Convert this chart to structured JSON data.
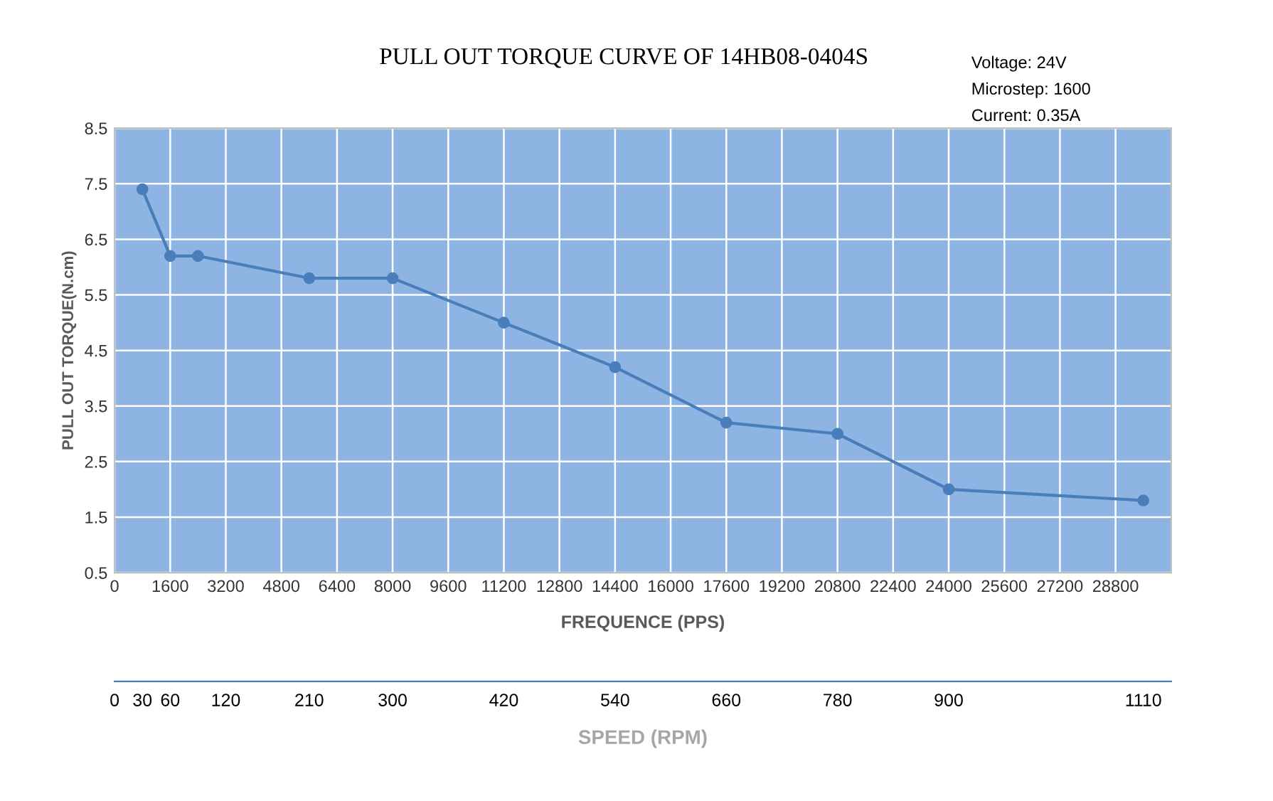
{
  "chart_data": {
    "type": "line",
    "title": "PULL OUT TORQUE CURVE OF 14HB08-0404S",
    "xlabel": "FREQUENCE (PPS)",
    "ylabel": "PULL OUT TORQUE(N.cm)",
    "x2label": "SPEED (RPM)",
    "annotations": [
      "Voltage: 24V",
      "Microstep: 1600",
      "Current: 0.35A"
    ],
    "x": [
      800,
      1600,
      2400,
      5600,
      8000,
      11200,
      14400,
      17600,
      20800,
      24000,
      29600
    ],
    "series": [
      {
        "color": "#4a7ebb",
        "values": [
          7.4,
          6.2,
          6.2,
          5.8,
          5.8,
          5.0,
          4.2,
          3.2,
          3.0,
          2.0,
          1.8
        ]
      }
    ],
    "xlim": [
      0,
      30400
    ],
    "xticks": [
      0,
      1600,
      3200,
      4800,
      6400,
      8000,
      9600,
      11200,
      12800,
      14400,
      16000,
      17600,
      19200,
      20800,
      22400,
      24000,
      25600,
      27200,
      28800
    ],
    "x2lim": [
      0,
      1140
    ],
    "x2ticks": [
      0,
      30,
      60,
      120,
      210,
      300,
      420,
      540,
      660,
      780,
      900,
      1110
    ],
    "ylim": [
      0.5,
      8.5
    ],
    "yticks": [
      0.5,
      1.5,
      2.5,
      3.5,
      4.5,
      5.5,
      6.5,
      7.5,
      8.5
    ],
    "grid": true,
    "marker": "circle",
    "line_style": "solid",
    "legend": false
  }
}
